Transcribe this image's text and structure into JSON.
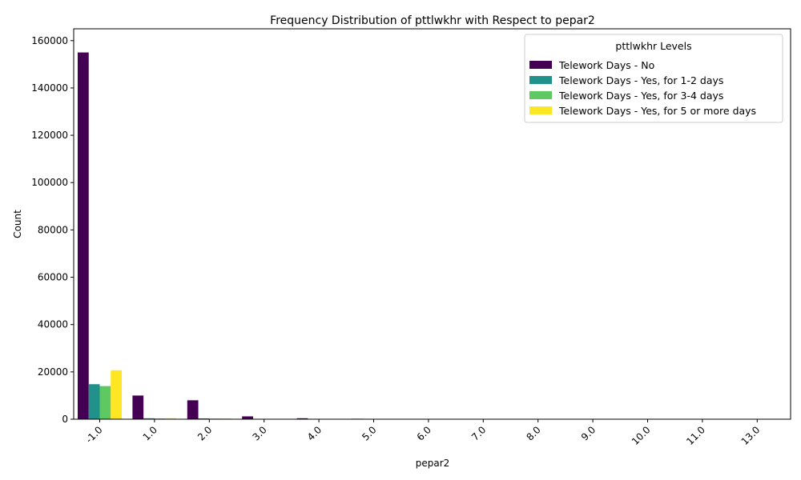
{
  "chart_data": {
    "type": "bar",
    "title": "Frequency Distribution of pttlwkhr with Respect to pepar2",
    "xlabel": "pepar2",
    "ylabel": "Count",
    "ylim": [
      0,
      165000
    ],
    "yticks": [
      0,
      20000,
      40000,
      60000,
      80000,
      100000,
      120000,
      140000,
      160000
    ],
    "categories": [
      "-1.0",
      "1.0",
      "2.0",
      "3.0",
      "4.0",
      "5.0",
      "6.0",
      "7.0",
      "8.0",
      "9.0",
      "10.0",
      "11.0",
      "13.0"
    ],
    "grid": false,
    "legend": {
      "title": "pttlwkhr Levels",
      "placement": "top-right"
    },
    "series": [
      {
        "name": "Telework Days - No",
        "color": "#440154",
        "values": [
          155000,
          10000,
          8000,
          1200,
          400,
          200,
          60,
          30,
          15,
          8,
          5,
          3,
          1
        ]
      },
      {
        "name": "Telework Days - Yes, for 1-2 days",
        "color": "#21918c",
        "values": [
          14800,
          400,
          350,
          60,
          20,
          10,
          3,
          2,
          1,
          0,
          0,
          0,
          0
        ]
      },
      {
        "name": "Telework Days - Yes, for 3-4 days",
        "color": "#5ec962",
        "values": [
          14000,
          300,
          250,
          40,
          15,
          8,
          2,
          1,
          0,
          0,
          0,
          0,
          0
        ]
      },
      {
        "name": "Telework Days - Yes, for 5 or more days",
        "color": "#fde725",
        "values": [
          20700,
          400,
          350,
          50,
          15,
          8,
          2,
          1,
          0,
          0,
          0,
          0,
          0
        ]
      }
    ]
  }
}
